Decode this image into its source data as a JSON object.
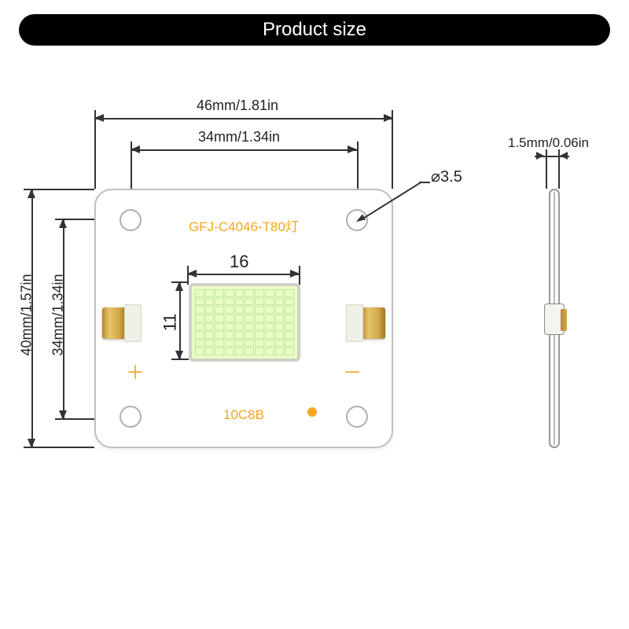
{
  "title": "Product size",
  "colors": {
    "title_bg": "#000000",
    "title_text": "#ffffff",
    "pcb_bg": "#ffffff",
    "pcb_border": "#c0c0c0",
    "text_accent": "#f5a623",
    "dim_color": "#333333",
    "led_fill": "#e8ffc4",
    "terminal_gold_a": "#b88a2f",
    "terminal_gold_b": "#d4a84a"
  },
  "pcb": {
    "top_label": "GFJ-C4046-T80灯",
    "bottom_label": "10C8B",
    "plus": "＋",
    "minus": "－",
    "led_grid_cols": 10,
    "led_grid_rows": 8
  },
  "dimensions": {
    "width_outer": "46mm/1.81in",
    "width_inner": "34mm/1.34in",
    "height_outer": "40mm/1.57in",
    "height_inner": "34mm/1.34in",
    "led_w": "16",
    "led_h": "11",
    "thickness": "1.5mm/0.06in",
    "hole_dia": "⌀3.5"
  },
  "type": "technical-dimension-drawing"
}
